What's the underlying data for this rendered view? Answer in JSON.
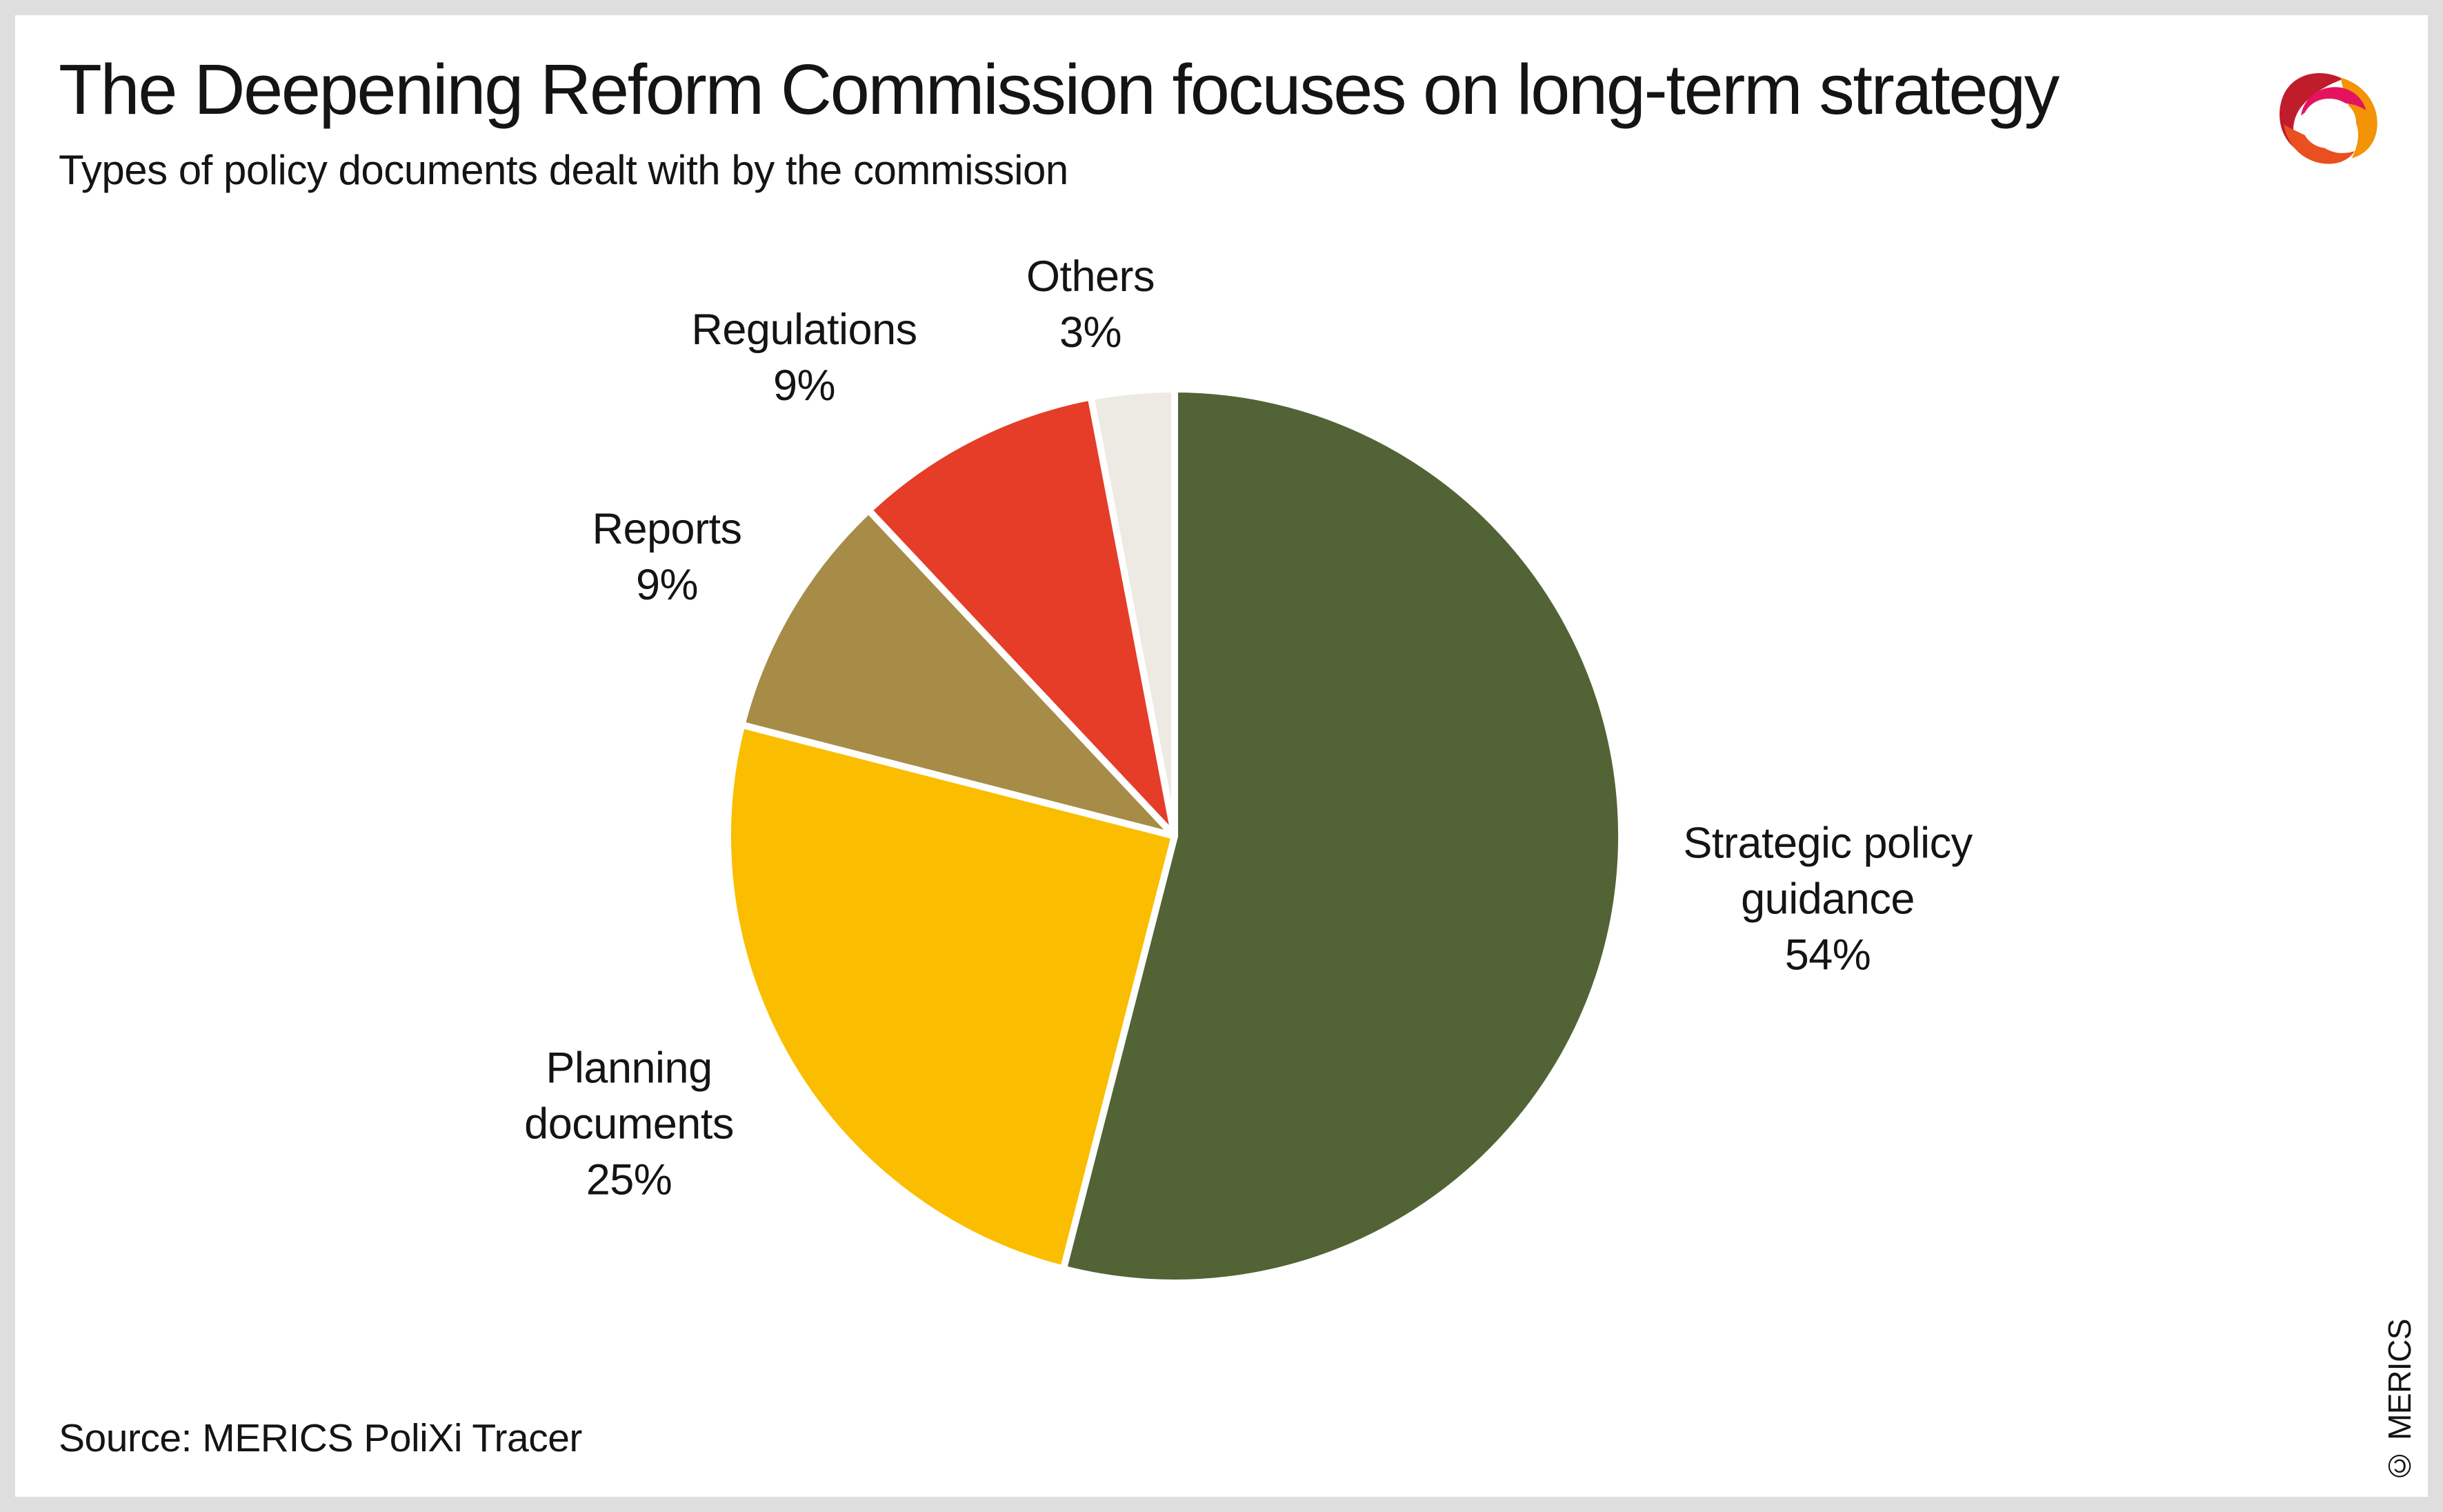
{
  "header": {
    "title": "The Deepening Reform Commission focuses on long-term strategy",
    "subtitle": "Types of policy documents dealt with by the commission"
  },
  "chart_data": {
    "type": "pie",
    "title": "Types of policy documents dealt with by the commission",
    "start_angle_deg": 0,
    "direction": "clockwise",
    "gap_color": "#ffffff",
    "legend": "none",
    "slices": [
      {
        "label": "Strategic policy guidance",
        "label_lines": [
          "Strategic policy",
          "guidance"
        ],
        "value": 54,
        "pct_label": "54%",
        "color": "#526336"
      },
      {
        "label": "Planning documents",
        "label_lines": [
          "Planning",
          "documents"
        ],
        "value": 25,
        "pct_label": "25%",
        "color": "#fbbd00"
      },
      {
        "label": "Reports",
        "label_lines": [
          "Reports"
        ],
        "value": 9,
        "pct_label": "9%",
        "color": "#a68c47"
      },
      {
        "label": "Regulations",
        "label_lines": [
          "Regulations"
        ],
        "value": 9,
        "pct_label": "9%",
        "color": "#e53d28"
      },
      {
        "label": "Others",
        "label_lines": [
          "Others"
        ],
        "value": 3,
        "pct_label": "3%",
        "color": "#edeae4"
      }
    ]
  },
  "footer": {
    "source": "Source: MERICS PoliXi Tracer",
    "copyright": "© MERICS"
  },
  "logo": {
    "name": "MERICS",
    "colors": {
      "dark_red": "#c01d2c",
      "pink": "#e5135f",
      "orange": "#f39306",
      "orange_red": "#ea4f1f",
      "hole": "#ffffff"
    }
  }
}
